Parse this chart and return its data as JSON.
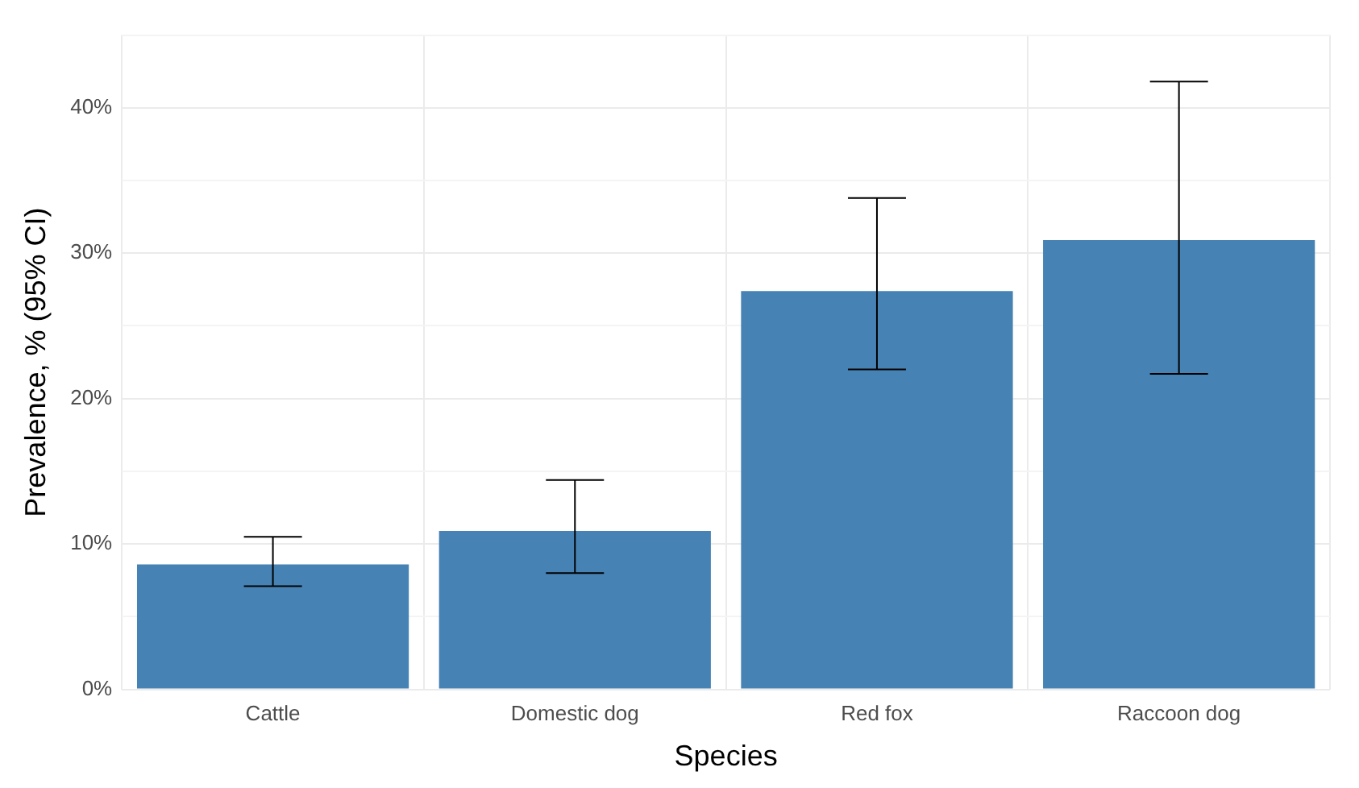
{
  "chart_data": {
    "type": "bar",
    "xlabel": "Species",
    "ylabel": "Prevalence, % (95% CI)",
    "categories": [
      "Cattle",
      "Domestic dog",
      "Red fox",
      "Raccoon dog"
    ],
    "values": [
      8.6,
      10.9,
      27.4,
      30.9
    ],
    "errors": [
      [
        7.1,
        10.5
      ],
      [
        8.0,
        14.4
      ],
      [
        22.0,
        33.8
      ],
      [
        21.7,
        41.8
      ]
    ],
    "color": "#4682b4",
    "ylim": [
      0,
      45
    ],
    "yticks": [
      {
        "value": 0,
        "label": "0%"
      },
      {
        "value": 5,
        "label": null
      },
      {
        "value": 10,
        "label": "10%"
      },
      {
        "value": 15,
        "label": null
      },
      {
        "value": 20,
        "label": "20%"
      },
      {
        "value": 25,
        "label": null
      },
      {
        "value": 30,
        "label": "30%"
      },
      {
        "value": 35,
        "label": null
      },
      {
        "value": 40,
        "label": "40%"
      },
      {
        "value": 45,
        "label": null
      }
    ],
    "grid": true,
    "legend": false
  }
}
